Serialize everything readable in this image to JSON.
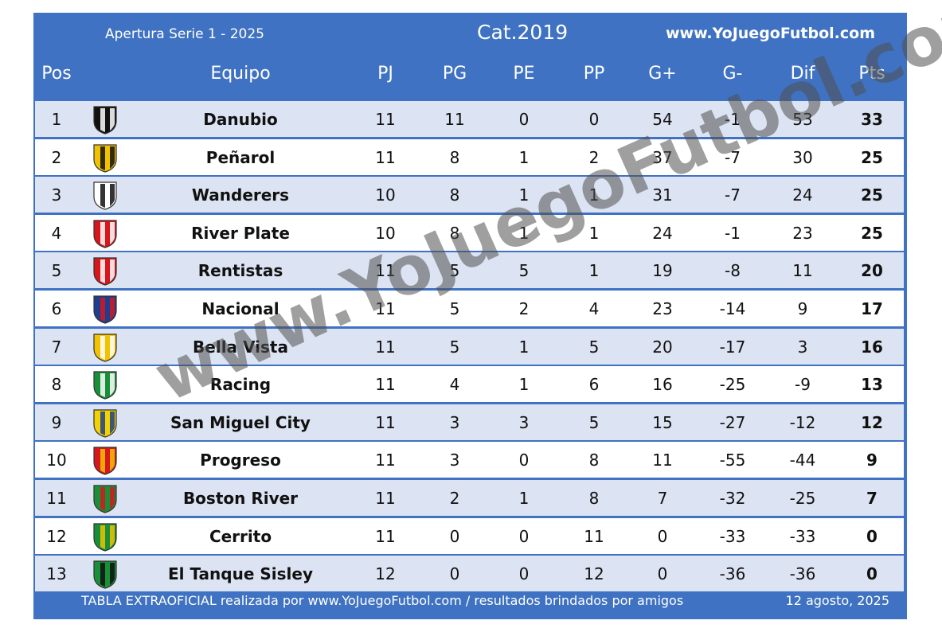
{
  "header": {
    "season": "Apertura Serie 1 - 2025",
    "category": "Cat.2019",
    "site": "www.YoJuegoFutbol.com"
  },
  "columns": {
    "pos": "Pos",
    "team": "Equipo",
    "pj": "PJ",
    "pg": "PG",
    "pe": "PE",
    "pp": "PP",
    "gf": "G+",
    "ga": "G-",
    "dif": "Dif",
    "pts": "Pts"
  },
  "rows": [
    {
      "pos": "1",
      "team": "Danubio",
      "pj": "11",
      "pg": "11",
      "pe": "0",
      "pp": "0",
      "gf": "54",
      "ga": "-1",
      "dif": "53",
      "pts": "33",
      "crest": "danubio-crest",
      "colors": [
        "#111111",
        "#ffffff"
      ]
    },
    {
      "pos": "2",
      "team": "Peñarol",
      "pj": "11",
      "pg": "8",
      "pe": "1",
      "pp": "2",
      "gf": "37",
      "ga": "-7",
      "dif": "30",
      "pts": "25",
      "crest": "penarol-crest",
      "colors": [
        "#f2c200",
        "#111111"
      ]
    },
    {
      "pos": "3",
      "team": "Wanderers",
      "pj": "10",
      "pg": "8",
      "pe": "1",
      "pp": "1",
      "gf": "31",
      "ga": "-7",
      "dif": "24",
      "pts": "25",
      "crest": "wanderers-crest",
      "colors": [
        "#ffffff",
        "#111111"
      ]
    },
    {
      "pos": "4",
      "team": "River Plate",
      "pj": "10",
      "pg": "8",
      "pe": "1",
      "pp": "1",
      "gf": "24",
      "ga": "-1",
      "dif": "23",
      "pts": "25",
      "crest": "river-plate-crest",
      "colors": [
        "#d7161e",
        "#ffffff"
      ]
    },
    {
      "pos": "5",
      "team": "Rentistas",
      "pj": "11",
      "pg": "5",
      "pe": "5",
      "pp": "1",
      "gf": "19",
      "ga": "-8",
      "dif": "11",
      "pts": "20",
      "crest": "rentistas-crest",
      "colors": [
        "#d7161e",
        "#ffffff"
      ]
    },
    {
      "pos": "6",
      "team": "Nacional",
      "pj": "11",
      "pg": "5",
      "pe": "2",
      "pp": "4",
      "gf": "23",
      "ga": "-14",
      "dif": "9",
      "pts": "17",
      "crest": "nacional-crest",
      "colors": [
        "#1e3f8f",
        "#d7161e"
      ]
    },
    {
      "pos": "7",
      "team": "Bella Vista",
      "pj": "11",
      "pg": "5",
      "pe": "1",
      "pp": "5",
      "gf": "20",
      "ga": "-17",
      "dif": "3",
      "pts": "16",
      "crest": "bella-vista-crest",
      "colors": [
        "#f2c200",
        "#ffffff"
      ]
    },
    {
      "pos": "8",
      "team": "Racing",
      "pj": "11",
      "pg": "4",
      "pe": "1",
      "pp": "6",
      "gf": "16",
      "ga": "-25",
      "dif": "-9",
      "pts": "13",
      "crest": "racing-crest",
      "colors": [
        "#1a8f3a",
        "#ffffff"
      ]
    },
    {
      "pos": "9",
      "team": "San Miguel City",
      "pj": "11",
      "pg": "3",
      "pe": "3",
      "pp": "5",
      "gf": "15",
      "ga": "-27",
      "dif": "-12",
      "pts": "12",
      "crest": "san-miguel-crest",
      "colors": [
        "#f2d200",
        "#1e3f8f"
      ]
    },
    {
      "pos": "10",
      "team": "Progreso",
      "pj": "11",
      "pg": "3",
      "pe": "0",
      "pp": "8",
      "gf": "11",
      "ga": "-55",
      "dif": "-44",
      "pts": "9",
      "crest": "progreso-crest",
      "colors": [
        "#d7161e",
        "#f2c200"
      ]
    },
    {
      "pos": "11",
      "team": "Boston River",
      "pj": "11",
      "pg": "2",
      "pe": "1",
      "pp": "8",
      "gf": "7",
      "ga": "-32",
      "dif": "-25",
      "pts": "7",
      "crest": "boston-river-crest",
      "colors": [
        "#1a8f3a",
        "#d7161e"
      ]
    },
    {
      "pos": "12",
      "team": "Cerrito",
      "pj": "11",
      "pg": "0",
      "pe": "0",
      "pp": "11",
      "gf": "0",
      "ga": "-33",
      "dif": "-33",
      "pts": "0",
      "crest": "cerrito-crest",
      "colors": [
        "#1a8f3a",
        "#f2c200"
      ]
    },
    {
      "pos": "13",
      "team": "El Tanque Sisley",
      "pj": "12",
      "pg": "0",
      "pe": "0",
      "pp": "12",
      "gf": "0",
      "ga": "-36",
      "dif": "-36",
      "pts": "0",
      "crest": "el-tanque-crest",
      "colors": [
        "#1a8f3a",
        "#111111"
      ]
    }
  ],
  "footer": {
    "note": "TABLA EXTRAOFICIAL realizada por www.YoJuegoFutbol.com / resultados brindados por amigos",
    "date": "12 agosto, 2025"
  },
  "watermark": "www.YoJuegoFutbol.com",
  "colors": {
    "frame": "#3f72c2",
    "row_shaded": "#dce3f2",
    "row_plain": "#ffffff"
  }
}
